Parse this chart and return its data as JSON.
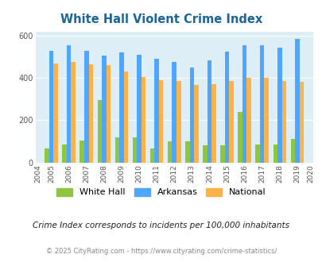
{
  "title": "White Hall Violent Crime Index",
  "years": [
    2005,
    2006,
    2007,
    2008,
    2009,
    2010,
    2011,
    2012,
    2013,
    2014,
    2015,
    2016,
    2017,
    2018,
    2019
  ],
  "white_hall": [
    65,
    85,
    105,
    295,
    120,
    120,
    65,
    100,
    100,
    80,
    80,
    240,
    85,
    85,
    110
  ],
  "arkansas": [
    530,
    555,
    530,
    505,
    520,
    510,
    490,
    475,
    450,
    485,
    525,
    555,
    555,
    545,
    585
  ],
  "national": [
    470,
    475,
    465,
    460,
    430,
    405,
    390,
    385,
    365,
    370,
    385,
    400,
    400,
    385,
    380
  ],
  "color_white_hall": "#8dc63f",
  "color_arkansas": "#4da6ff",
  "color_national": "#ffb347",
  "bg_color": "#ddeef6",
  "title_color": "#1a6699",
  "ylim": [
    0,
    620
  ],
  "yticks": [
    0,
    200,
    400,
    600
  ],
  "subtitle": "Crime Index corresponds to incidents per 100,000 inhabitants",
  "footer": "© 2025 CityRating.com - https://www.cityrating.com/crime-statistics/",
  "legend_labels": [
    "White Hall",
    "Arkansas",
    "National"
  ],
  "subtitle_color": "#222222",
  "footer_color": "#888888"
}
